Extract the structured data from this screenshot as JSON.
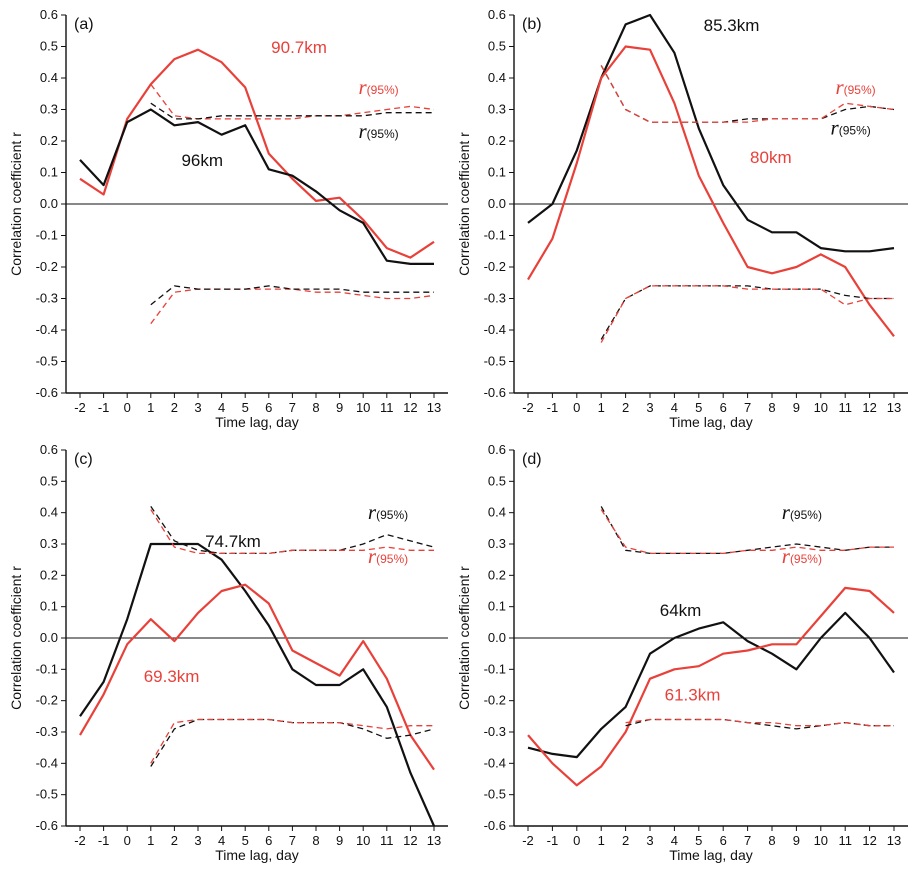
{
  "chart_data": [
    {
      "type": "line",
      "panel_label": "(a)",
      "xlabel": "Time lag, day",
      "ylabel": "Correlation coefficient r",
      "xlim": [
        -2,
        13
      ],
      "ylim": [
        -0.6,
        0.6
      ],
      "x_ticks": [
        "-2",
        "-1",
        "0",
        "1",
        "2",
        "3",
        "4",
        "5",
        "6",
        "7",
        "8",
        "9",
        "10",
        "11",
        "12",
        "13"
      ],
      "y_ticks": [
        "0.6",
        "0.5",
        "0.4",
        "0.3",
        "0.2",
        "0.1",
        "0.0",
        "-0.1",
        "-0.2",
        "-0.3",
        "-0.4",
        "-0.5",
        "-0.6"
      ],
      "zero_line": true,
      "series": [
        {
          "color": "#e8413a",
          "style": "solid",
          "x": [
            -2,
            -1,
            0,
            1,
            2,
            3,
            4,
            5,
            6,
            7,
            8,
            9,
            10,
            11,
            12,
            13
          ],
          "y": [
            0.08,
            0.03,
            0.27,
            0.38,
            0.46,
            0.49,
            0.45,
            0.37,
            0.16,
            0.08,
            0.01,
            0.02,
            -0.05,
            -0.14,
            -0.17,
            -0.12
          ]
        },
        {
          "color": "#111111",
          "style": "solid",
          "x": [
            -2,
            -1,
            0,
            1,
            2,
            3,
            4,
            5,
            6,
            7,
            8,
            9,
            10,
            11,
            12,
            13
          ],
          "y": [
            0.14,
            0.06,
            0.26,
            0.3,
            0.25,
            0.26,
            0.22,
            0.25,
            0.11,
            0.09,
            0.04,
            -0.02,
            -0.06,
            -0.18,
            -0.19,
            -0.19
          ]
        },
        {
          "color": "#e8413a",
          "style": "dashed",
          "x": [
            1,
            2,
            3,
            4,
            5,
            6,
            7,
            8,
            9,
            10,
            11,
            12,
            13
          ],
          "y": [
            0.38,
            0.28,
            0.27,
            0.27,
            0.27,
            0.27,
            0.27,
            0.28,
            0.28,
            0.29,
            0.3,
            0.31,
            0.3
          ]
        },
        {
          "color": "#111111",
          "style": "dashed",
          "x": [
            1,
            2,
            3,
            4,
            5,
            6,
            7,
            8,
            9,
            10,
            11,
            12,
            13
          ],
          "y": [
            0.32,
            0.27,
            0.27,
            0.28,
            0.28,
            0.28,
            0.28,
            0.28,
            0.28,
            0.28,
            0.29,
            0.29,
            0.29
          ]
        },
        {
          "color": "#e8413a",
          "style": "dashed",
          "x": [
            1,
            2,
            3,
            4,
            5,
            6,
            7,
            8,
            9,
            10,
            11,
            12,
            13
          ],
          "y": [
            -0.38,
            -0.28,
            -0.27,
            -0.27,
            -0.27,
            -0.27,
            -0.27,
            -0.28,
            -0.28,
            -0.29,
            -0.3,
            -0.3,
            -0.29
          ]
        },
        {
          "color": "#111111",
          "style": "dashed",
          "x": [
            1,
            2,
            3,
            4,
            5,
            6,
            7,
            8,
            9,
            10,
            11,
            12,
            13
          ],
          "y": [
            -0.32,
            -0.26,
            -0.27,
            -0.27,
            -0.27,
            -0.26,
            -0.27,
            -0.27,
            -0.27,
            -0.28,
            -0.28,
            -0.28,
            -0.28
          ]
        }
      ],
      "annotations": [
        {
          "text": "90.7km",
          "color": "#e8413a",
          "x": 6.1,
          "y": 0.48
        },
        {
          "text": "96km",
          "color": "#111111",
          "x": 2.3,
          "y": 0.12
        },
        {
          "text": "r",
          "sub": "(95%)",
          "color": "#e8413a",
          "x": 9.8,
          "y": 0.35
        },
        {
          "text": "r",
          "sub": "(95%)",
          "color": "#111111",
          "x": 9.8,
          "y": 0.21
        }
      ]
    },
    {
      "type": "line",
      "panel_label": "(b)",
      "xlabel": "Time lag, day",
      "ylabel": "Correlation coefficient r",
      "xlim": [
        -2,
        13
      ],
      "ylim": [
        -0.6,
        0.6
      ],
      "x_ticks": [
        "-2",
        "-1",
        "0",
        "1",
        "2",
        "3",
        "4",
        "5",
        "6",
        "7",
        "8",
        "9",
        "10",
        "11",
        "12",
        "13"
      ],
      "y_ticks": [
        "0.6",
        "0.5",
        "0.4",
        "0.3",
        "0.2",
        "0.1",
        "0.0",
        "-0.1",
        "-0.2",
        "-0.3",
        "-0.4",
        "-0.5",
        "-0.6"
      ],
      "zero_line": true,
      "series": [
        {
          "color": "#111111",
          "style": "solid",
          "x": [
            -2,
            -1,
            0,
            1,
            2,
            3,
            4,
            5,
            6,
            7,
            8,
            9,
            10,
            11,
            12,
            13
          ],
          "y": [
            -0.06,
            0.0,
            0.17,
            0.4,
            0.57,
            0.6,
            0.48,
            0.24,
            0.06,
            -0.05,
            -0.09,
            -0.09,
            -0.14,
            -0.15,
            -0.15,
            -0.14
          ]
        },
        {
          "color": "#e8413a",
          "style": "solid",
          "x": [
            -2,
            -1,
            0,
            1,
            2,
            3,
            4,
            5,
            6,
            7,
            8,
            9,
            10,
            11,
            12,
            13
          ],
          "y": [
            -0.24,
            -0.11,
            0.13,
            0.4,
            0.5,
            0.49,
            0.32,
            0.09,
            -0.06,
            -0.2,
            -0.22,
            -0.2,
            -0.16,
            -0.2,
            -0.32,
            -0.42
          ]
        },
        {
          "color": "#111111",
          "style": "dashed",
          "x": [
            1,
            2,
            3,
            4,
            5,
            6,
            7,
            8,
            9,
            10,
            11,
            12,
            13
          ],
          "y": [
            0.44,
            0.3,
            0.26,
            0.26,
            0.26,
            0.26,
            0.27,
            0.27,
            0.27,
            0.27,
            0.3,
            0.31,
            0.3
          ]
        },
        {
          "color": "#e8413a",
          "style": "dashed",
          "x": [
            1,
            2,
            3,
            4,
            5,
            6,
            7,
            8,
            9,
            10,
            11,
            12,
            13
          ],
          "y": [
            0.44,
            0.3,
            0.26,
            0.26,
            0.26,
            0.26,
            0.26,
            0.27,
            0.27,
            0.27,
            0.32,
            0.31,
            0.3
          ]
        },
        {
          "color": "#111111",
          "style": "dashed",
          "x": [
            1,
            2,
            3,
            4,
            5,
            6,
            7,
            8,
            9,
            10,
            11,
            12,
            13
          ],
          "y": [
            -0.43,
            -0.3,
            -0.26,
            -0.26,
            -0.26,
            -0.26,
            -0.26,
            -0.27,
            -0.27,
            -0.27,
            -0.29,
            -0.3,
            -0.3
          ]
        },
        {
          "color": "#e8413a",
          "style": "dashed",
          "x": [
            1,
            2,
            3,
            4,
            5,
            6,
            7,
            8,
            9,
            10,
            11,
            12,
            13
          ],
          "y": [
            -0.44,
            -0.3,
            -0.26,
            -0.26,
            -0.26,
            -0.26,
            -0.27,
            -0.27,
            -0.27,
            -0.27,
            -0.32,
            -0.3,
            -0.3
          ]
        }
      ],
      "annotations": [
        {
          "text": "85.3km",
          "color": "#111111",
          "x": 5.2,
          "y": 0.55
        },
        {
          "text": "80km",
          "color": "#e8413a",
          "x": 7.1,
          "y": 0.13
        },
        {
          "text": "r",
          "sub": "(95%)",
          "color": "#e8413a",
          "x": 10.6,
          "y": 0.35
        },
        {
          "text": "r",
          "sub": "(95%)",
          "color": "#111111",
          "x": 10.4,
          "y": 0.22
        }
      ]
    },
    {
      "type": "line",
      "panel_label": "(c)",
      "xlabel": "Time lag, day",
      "ylabel": "Correlation coefficient r",
      "xlim": [
        -2,
        13
      ],
      "ylim": [
        -0.6,
        0.6
      ],
      "x_ticks": [
        "-2",
        "-1",
        "0",
        "1",
        "2",
        "3",
        "4",
        "5",
        "6",
        "7",
        "8",
        "9",
        "10",
        "11",
        "12",
        "13"
      ],
      "y_ticks": [
        "0.6",
        "0.5",
        "0.4",
        "0.3",
        "0.2",
        "0.1",
        "0.0",
        "-0.1",
        "-0.2",
        "-0.3",
        "-0.4",
        "-0.5",
        "-0.6"
      ],
      "zero_line": true,
      "series": [
        {
          "color": "#111111",
          "style": "solid",
          "x": [
            -2,
            -1,
            0,
            1,
            2,
            3,
            4,
            5,
            6,
            7,
            8,
            9,
            10,
            11,
            12,
            13
          ],
          "y": [
            -0.25,
            -0.14,
            0.06,
            0.3,
            0.3,
            0.3,
            0.25,
            0.15,
            0.04,
            -0.1,
            -0.15,
            -0.15,
            -0.1,
            -0.22,
            -0.43,
            -0.6
          ]
        },
        {
          "color": "#e8413a",
          "style": "solid",
          "x": [
            -2,
            -1,
            0,
            1,
            2,
            3,
            4,
            5,
            6,
            7,
            8,
            9,
            10,
            11,
            12,
            13
          ],
          "y": [
            -0.31,
            -0.18,
            -0.02,
            0.06,
            -0.01,
            0.08,
            0.15,
            0.17,
            0.11,
            -0.04,
            -0.08,
            -0.12,
            -0.01,
            -0.13,
            -0.31,
            -0.42
          ]
        },
        {
          "color": "#111111",
          "style": "dashed",
          "x": [
            1,
            2,
            3,
            4,
            5,
            6,
            7,
            8,
            9,
            10,
            11,
            12,
            13
          ],
          "y": [
            0.42,
            0.31,
            0.28,
            0.27,
            0.27,
            0.27,
            0.28,
            0.28,
            0.28,
            0.3,
            0.33,
            0.31,
            0.29
          ]
        },
        {
          "color": "#e8413a",
          "style": "dashed",
          "x": [
            1,
            2,
            3,
            4,
            5,
            6,
            7,
            8,
            9,
            10,
            11,
            12,
            13
          ],
          "y": [
            0.41,
            0.29,
            0.27,
            0.27,
            0.27,
            0.27,
            0.28,
            0.28,
            0.28,
            0.28,
            0.29,
            0.28,
            0.28
          ]
        },
        {
          "color": "#111111",
          "style": "dashed",
          "x": [
            1,
            2,
            3,
            4,
            5,
            6,
            7,
            8,
            9,
            10,
            11,
            12,
            13
          ],
          "y": [
            -0.41,
            -0.29,
            -0.26,
            -0.26,
            -0.26,
            -0.26,
            -0.27,
            -0.27,
            -0.27,
            -0.29,
            -0.32,
            -0.31,
            -0.29
          ]
        },
        {
          "color": "#e8413a",
          "style": "dashed",
          "x": [
            1,
            2,
            3,
            4,
            5,
            6,
            7,
            8,
            9,
            10,
            11,
            12,
            13
          ],
          "y": [
            -0.4,
            -0.27,
            -0.26,
            -0.26,
            -0.26,
            -0.26,
            -0.27,
            -0.27,
            -0.27,
            -0.28,
            -0.29,
            -0.28,
            -0.28
          ]
        }
      ],
      "annotations": [
        {
          "text": "74.7km",
          "color": "#111111",
          "x": 3.3,
          "y": 0.29
        },
        {
          "text": "69.3km",
          "color": "#e8413a",
          "x": 0.7,
          "y": -0.14
        },
        {
          "text": "r",
          "sub": "(95%)",
          "color": "#111111",
          "x": 10.2,
          "y": 0.38
        },
        {
          "text": "r",
          "sub": "(95%)",
          "color": "#e8413a",
          "x": 10.2,
          "y": 0.24
        }
      ]
    },
    {
      "type": "line",
      "panel_label": "(d)",
      "xlabel": "Time lag, day",
      "ylabel": "Correlation coefficient r",
      "xlim": [
        -2,
        13
      ],
      "ylim": [
        -0.6,
        0.6
      ],
      "x_ticks": [
        "-2",
        "-1",
        "0",
        "1",
        "2",
        "3",
        "4",
        "5",
        "6",
        "7",
        "8",
        "9",
        "10",
        "11",
        "12",
        "13"
      ],
      "y_ticks": [
        "0.6",
        "0.5",
        "0.4",
        "0.3",
        "0.2",
        "0.1",
        "0.0",
        "-0.1",
        "-0.2",
        "-0.3",
        "-0.4",
        "-0.5",
        "-0.6"
      ],
      "zero_line": true,
      "series": [
        {
          "color": "#111111",
          "style": "solid",
          "x": [
            -2,
            -1,
            0,
            1,
            2,
            3,
            4,
            5,
            6,
            7,
            8,
            9,
            10,
            11,
            12,
            13
          ],
          "y": [
            -0.35,
            -0.37,
            -0.38,
            -0.29,
            -0.22,
            -0.05,
            0.0,
            0.03,
            0.05,
            -0.01,
            -0.05,
            -0.1,
            0.0,
            0.08,
            0.0,
            -0.11
          ]
        },
        {
          "color": "#e8413a",
          "style": "solid",
          "x": [
            -2,
            -1,
            0,
            1,
            2,
            3,
            4,
            5,
            6,
            7,
            8,
            9,
            10,
            11,
            12,
            13
          ],
          "y": [
            -0.31,
            -0.4,
            -0.47,
            -0.41,
            -0.3,
            -0.13,
            -0.1,
            -0.09,
            -0.05,
            -0.04,
            -0.02,
            -0.02,
            0.07,
            0.16,
            0.15,
            0.08
          ]
        },
        {
          "color": "#111111",
          "style": "dashed",
          "x": [
            1,
            2,
            3,
            4,
            5,
            6,
            7,
            8,
            9,
            10,
            11,
            12,
            13
          ],
          "y": [
            0.42,
            0.28,
            0.27,
            0.27,
            0.27,
            0.27,
            0.28,
            0.29,
            0.3,
            0.29,
            0.28,
            0.29,
            0.29
          ]
        },
        {
          "color": "#e8413a",
          "style": "dashed",
          "x": [
            1,
            2,
            3,
            4,
            5,
            6,
            7,
            8,
            9,
            10,
            11,
            12,
            13
          ],
          "y": [
            0.41,
            0.29,
            0.27,
            0.27,
            0.27,
            0.27,
            0.28,
            0.28,
            0.29,
            0.28,
            0.28,
            0.29,
            0.29
          ]
        },
        {
          "color": "#111111",
          "style": "dashed",
          "x": [
            2,
            3,
            4,
            5,
            6,
            7,
            8,
            9,
            10,
            11,
            12,
            13
          ],
          "y": [
            -0.28,
            -0.26,
            -0.26,
            -0.26,
            -0.26,
            -0.27,
            -0.28,
            -0.29,
            -0.28,
            -0.27,
            -0.28,
            -0.28
          ]
        },
        {
          "color": "#e8413a",
          "style": "dashed",
          "x": [
            2,
            3,
            4,
            5,
            6,
            7,
            8,
            9,
            10,
            11,
            12,
            13
          ],
          "y": [
            -0.27,
            -0.26,
            -0.26,
            -0.26,
            -0.26,
            -0.27,
            -0.27,
            -0.28,
            -0.28,
            -0.27,
            -0.28,
            -0.28
          ]
        }
      ],
      "annotations": [
        {
          "text": "64km",
          "color": "#111111",
          "x": 3.4,
          "y": 0.07
        },
        {
          "text": "61.3km",
          "color": "#e8413a",
          "x": 3.6,
          "y": -0.2
        },
        {
          "text": "r",
          "sub": "(95%)",
          "color": "#111111",
          "x": 8.4,
          "y": 0.38
        },
        {
          "text": "r",
          "sub": "(95%)",
          "color": "#e8413a",
          "x": 8.4,
          "y": 0.24
        }
      ]
    }
  ]
}
